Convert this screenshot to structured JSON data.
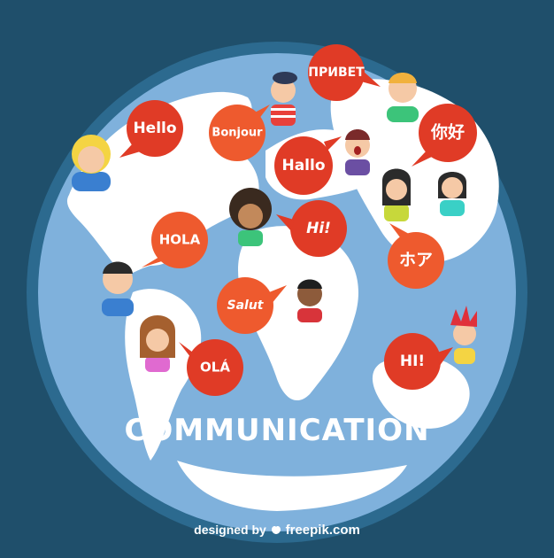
{
  "title": "COMMUNICATION",
  "colors": {
    "background": "#1f4f6b",
    "globe_ocean": "#7fb1dc",
    "globe_rim": "#2c6a8f",
    "land": "#ffffff",
    "bubble_red": "#e03b26",
    "bubble_orange": "#ee5a2e"
  },
  "bubbles": [
    {
      "id": "hello",
      "text": "Hello"
    },
    {
      "id": "bonjour",
      "text": "Bonjour"
    },
    {
      "id": "privet",
      "text": "ПРИВЕТ"
    },
    {
      "id": "nihao",
      "text": "你好"
    },
    {
      "id": "hallo",
      "text": "Hallo"
    },
    {
      "id": "hi",
      "text": "Hi!"
    },
    {
      "id": "hola",
      "text": "HOLA"
    },
    {
      "id": "hoa",
      "text": "ホア"
    },
    {
      "id": "salut",
      "text": "Salut"
    },
    {
      "id": "ola",
      "text": "OLÁ"
    },
    {
      "id": "hi2",
      "text": "HI!"
    }
  ],
  "people_icon": "person-avatar-icon",
  "credit": {
    "prefix": "designed by",
    "brand": "freepik.com",
    "logo_icon": "freepik-logo-icon"
  }
}
